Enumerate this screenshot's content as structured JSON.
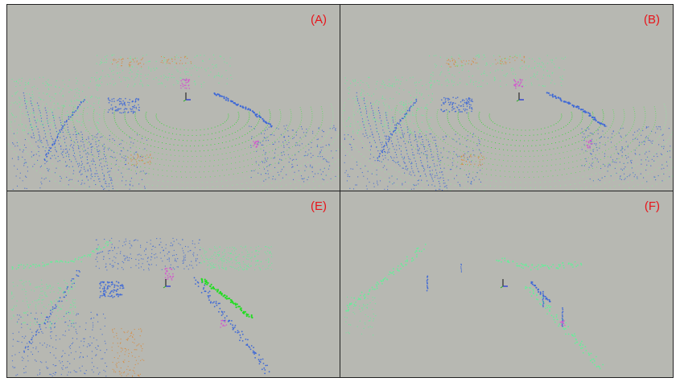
{
  "panels": [
    {
      "id": "a",
      "label": "(A)",
      "variant": "full"
    },
    {
      "id": "b",
      "label": "(B)",
      "variant": "full"
    },
    {
      "id": "e",
      "label": "(E)",
      "variant": "road"
    },
    {
      "id": "f",
      "label": "(F)",
      "variant": "sparse"
    }
  ],
  "colors": {
    "background": "#b7b8b2",
    "label": "#e8141a",
    "ground_green": "#22dd22",
    "far_green": "#66ee99",
    "blue_points": "#3f69d6",
    "orange_points": "#d88a3c",
    "pink_points": "#d64fd0",
    "axis_x": "#1a2bd8",
    "axis_y": "#111111"
  }
}
